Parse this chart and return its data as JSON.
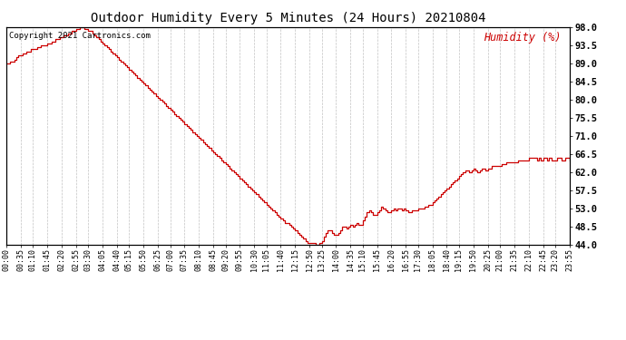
{
  "title": "Outdoor Humidity Every 5 Minutes (24 Hours) 20210804",
  "copyright_text": "Copyright 2021 Cartronics.com",
  "legend_label": "Humidity (%)",
  "legend_color": "#cc0000",
  "line_color": "#cc0000",
  "background_color": "#ffffff",
  "grid_color": "#bbbbbb",
  "title_color": "#000000",
  "ylim": [
    44.0,
    98.0
  ],
  "yticks": [
    44.0,
    48.5,
    53.0,
    57.5,
    62.0,
    66.5,
    71.0,
    75.5,
    80.0,
    84.5,
    89.0,
    93.5,
    98.0
  ],
  "humidity_data": [
    89.0,
    89.0,
    89.5,
    89.5,
    90.0,
    90.5,
    91.0,
    91.0,
    91.5,
    91.5,
    92.0,
    92.0,
    92.5,
    92.5,
    92.5,
    93.0,
    93.0,
    93.5,
    93.5,
    93.5,
    94.0,
    94.0,
    94.5,
    94.5,
    95.0,
    95.0,
    95.5,
    95.5,
    96.0,
    96.0,
    96.5,
    96.5,
    97.0,
    97.0,
    97.5,
    97.5,
    98.0,
    98.0,
    97.5,
    97.5,
    97.0,
    97.0,
    96.5,
    96.0,
    95.5,
    95.0,
    94.5,
    94.0,
    93.5,
    93.0,
    92.5,
    92.0,
    91.5,
    91.0,
    90.5,
    90.0,
    89.5,
    89.0,
    88.5,
    88.0,
    87.5,
    87.0,
    86.5,
    86.0,
    85.5,
    85.0,
    84.5,
    84.0,
    83.5,
    83.0,
    82.5,
    82.0,
    81.5,
    81.0,
    80.5,
    80.0,
    79.5,
    79.0,
    78.5,
    78.0,
    77.5,
    77.0,
    76.5,
    76.0,
    75.5,
    75.0,
    74.5,
    74.0,
    73.5,
    73.0,
    72.5,
    72.0,
    71.5,
    71.0,
    70.5,
    70.0,
    69.5,
    69.0,
    68.5,
    68.0,
    67.5,
    67.0,
    66.5,
    66.0,
    65.5,
    65.0,
    64.5,
    64.0,
    63.5,
    63.0,
    62.5,
    62.0,
    61.5,
    61.0,
    60.5,
    60.0,
    59.5,
    59.0,
    58.5,
    58.0,
    57.5,
    57.0,
    56.5,
    56.0,
    55.5,
    55.0,
    54.5,
    54.0,
    53.5,
    53.0,
    52.5,
    52.0,
    51.5,
    51.0,
    50.5,
    50.0,
    49.5,
    49.5,
    49.0,
    48.5,
    48.0,
    47.5,
    47.0,
    46.5,
    46.0,
    45.5,
    45.0,
    44.5,
    44.5,
    44.5,
    44.5,
    44.0,
    44.0,
    44.5,
    45.0,
    46.0,
    47.0,
    47.5,
    47.5,
    47.0,
    46.5,
    46.5,
    47.0,
    47.5,
    48.5,
    48.5,
    48.0,
    48.5,
    49.0,
    48.5,
    49.0,
    49.5,
    49.0,
    49.0,
    50.0,
    51.0,
    52.0,
    52.5,
    52.0,
    51.5,
    51.5,
    52.0,
    52.5,
    53.5,
    53.0,
    52.5,
    52.0,
    52.0,
    52.5,
    53.0,
    52.5,
    53.0,
    53.0,
    52.5,
    53.0,
    52.5,
    52.0,
    52.0,
    52.5,
    52.5,
    52.5,
    53.0,
    53.0,
    53.0,
    53.5,
    53.5,
    54.0,
    54.0,
    54.5,
    55.0,
    55.5,
    56.0,
    56.5,
    57.0,
    57.5,
    58.0,
    58.5,
    59.0,
    59.5,
    60.0,
    60.5,
    61.0,
    61.5,
    62.0,
    62.5,
    62.5,
    62.0,
    62.5,
    63.0,
    62.5,
    62.0,
    62.5,
    63.0,
    63.0,
    62.5,
    63.0,
    63.0,
    63.5,
    63.5,
    63.5,
    63.5,
    63.5,
    64.0,
    64.0,
    64.5,
    64.5,
    64.5,
    64.5,
    64.5,
    64.5,
    65.0,
    65.0,
    65.0,
    65.0,
    65.0,
    65.5,
    65.5,
    65.5,
    65.5,
    65.0,
    65.5,
    65.0,
    65.5,
    65.5,
    65.0,
    65.5,
    65.0,
    65.0,
    65.0,
    65.5,
    65.5,
    65.0,
    65.0,
    65.5,
    65.5,
    65.0
  ],
  "xtick_labels": [
    "00:00",
    "00:35",
    "01:10",
    "01:45",
    "02:20",
    "02:55",
    "03:30",
    "04:05",
    "04:40",
    "05:15",
    "05:50",
    "06:25",
    "07:00",
    "07:35",
    "08:10",
    "08:45",
    "09:20",
    "09:55",
    "10:30",
    "11:05",
    "11:40",
    "12:15",
    "12:50",
    "13:25",
    "14:00",
    "14:35",
    "15:10",
    "15:45",
    "16:20",
    "16:55",
    "17:30",
    "18:05",
    "18:40",
    "19:15",
    "19:50",
    "20:25",
    "21:00",
    "21:35",
    "22:10",
    "22:45",
    "23:20",
    "23:55"
  ]
}
